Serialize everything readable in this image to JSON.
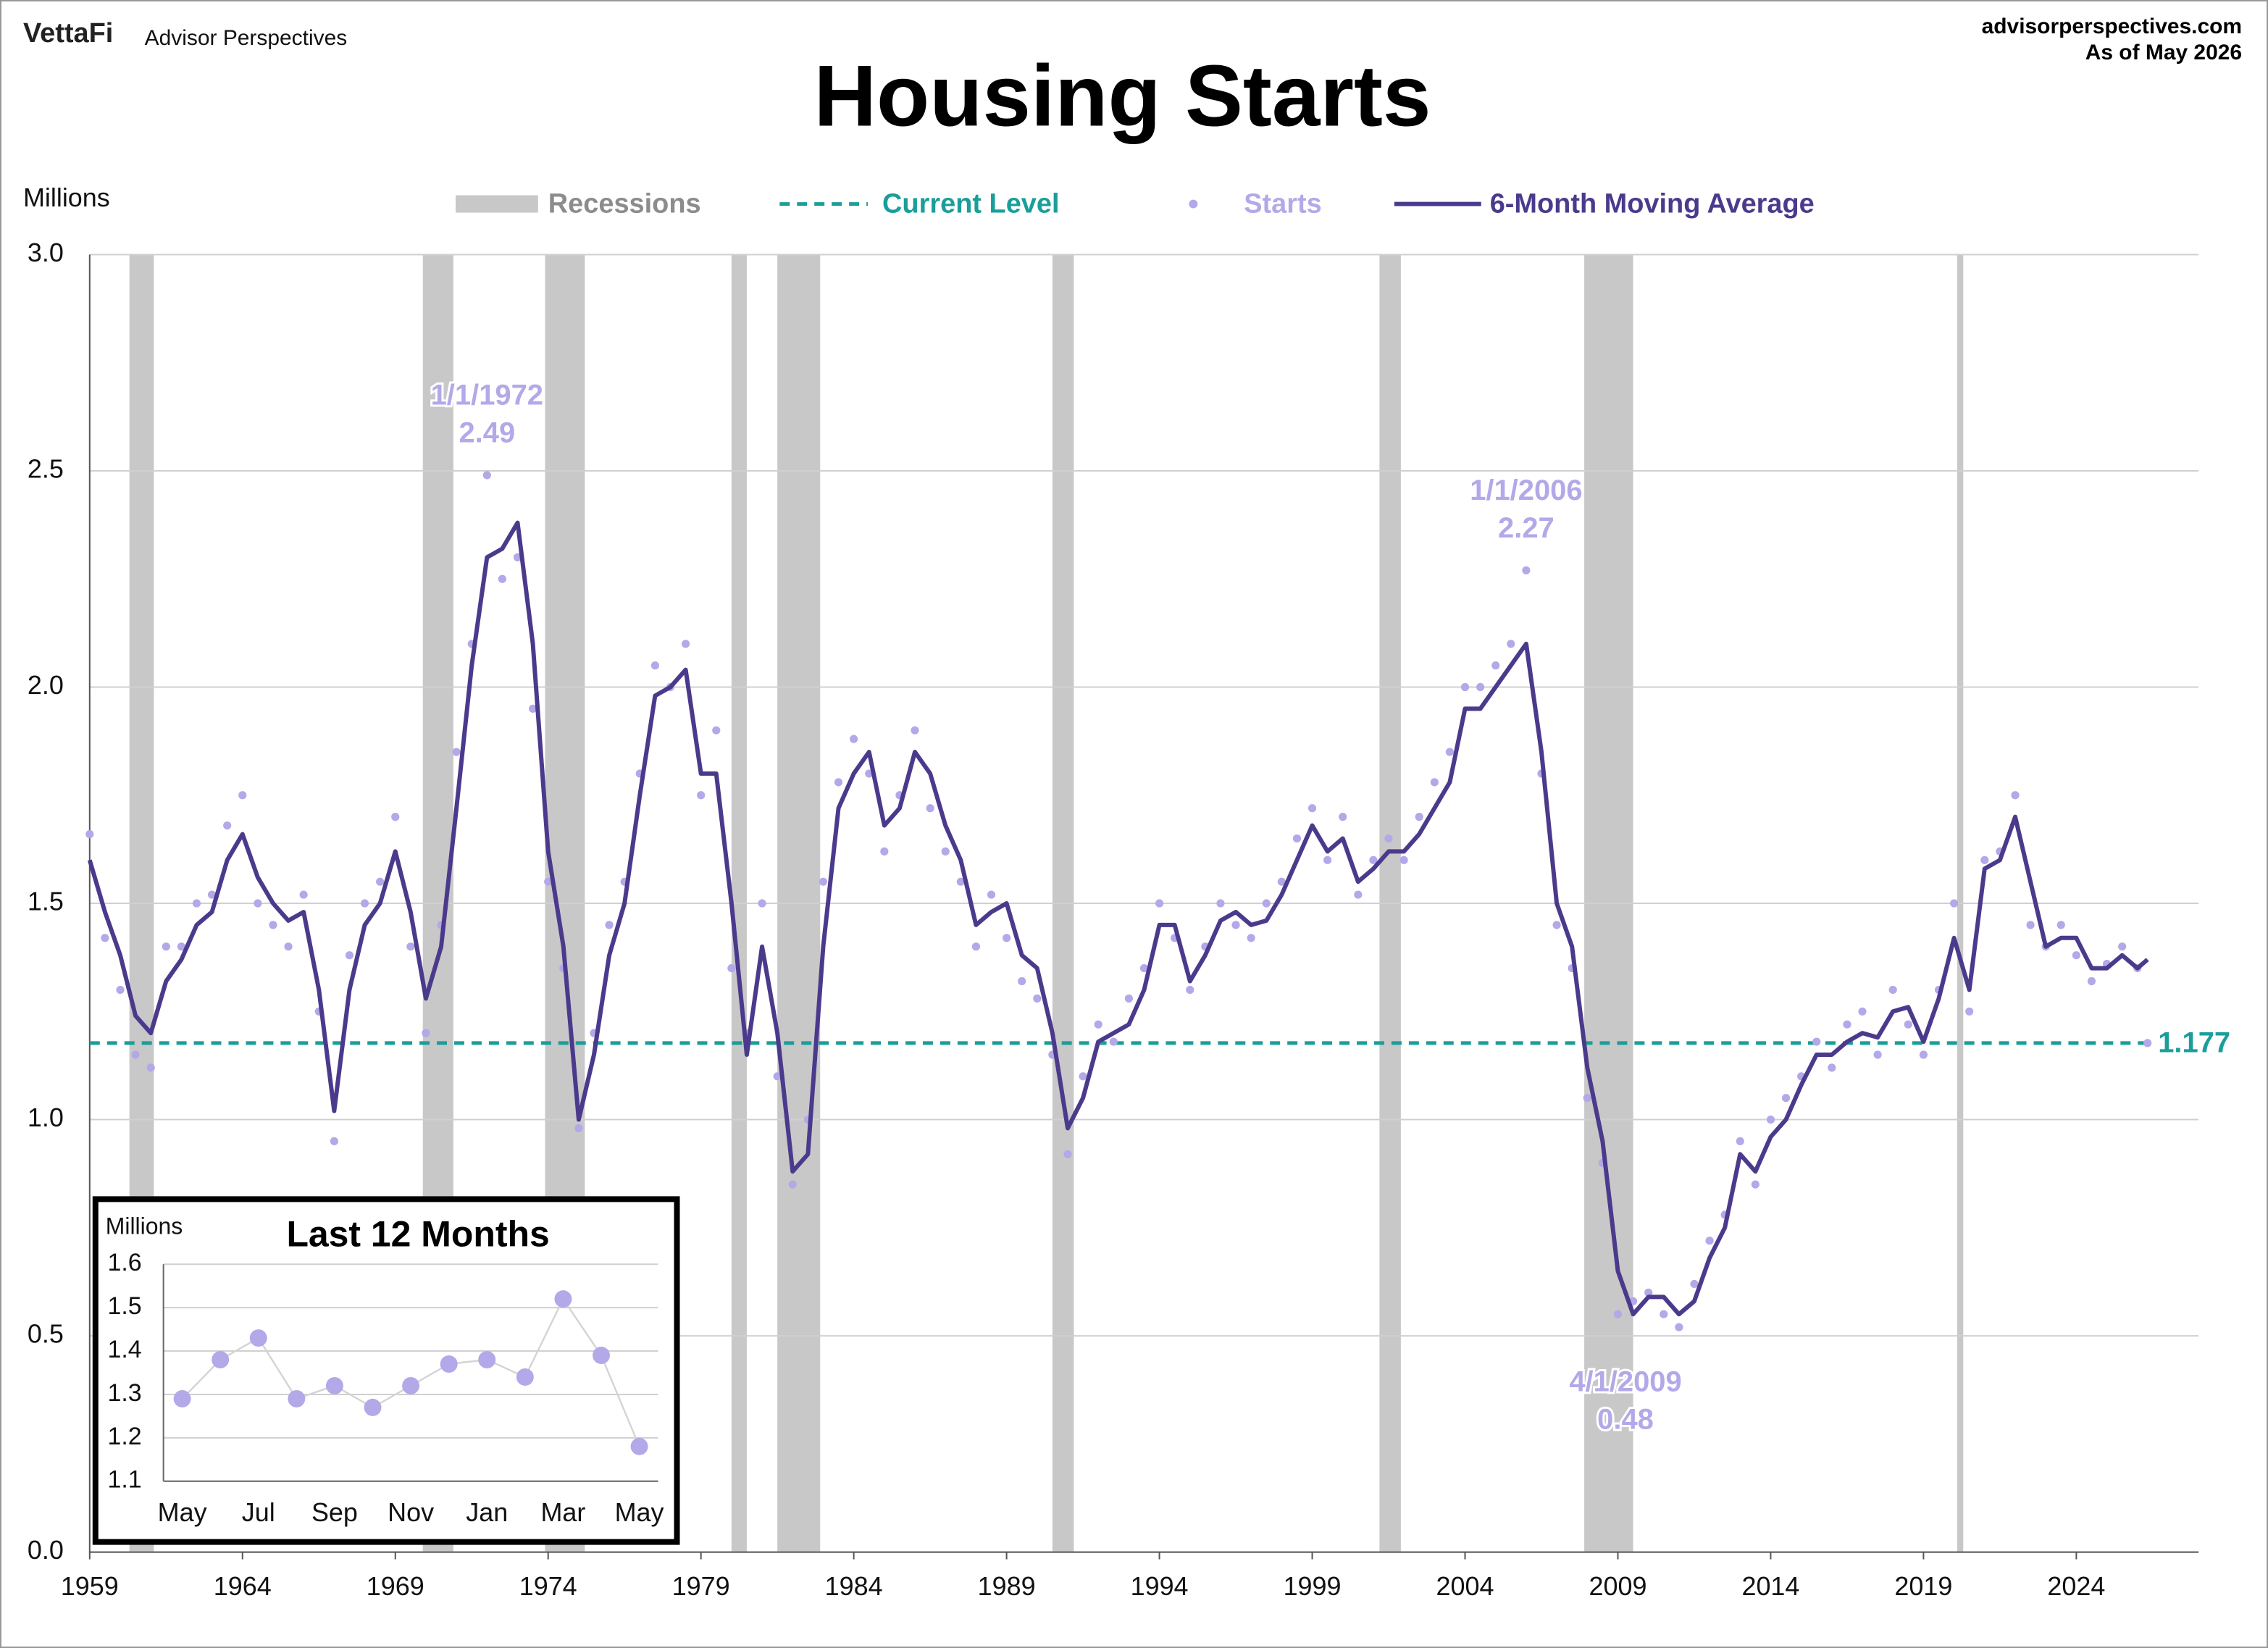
{
  "header": {
    "brand": "VettaFi",
    "publisher": "Advisor Perspectives",
    "site": "advisorperspectives.com",
    "as_of": "As of May 2026"
  },
  "chart_data": [
    {
      "type": "line",
      "title": "Housing Starts",
      "y_label": "Millions",
      "x": [
        1959,
        1959.5,
        1960,
        1960.5,
        1961,
        1961.5,
        1962,
        1962.5,
        1963,
        1963.5,
        1964,
        1964.5,
        1965,
        1965.5,
        1966,
        1966.5,
        1967,
        1967.5,
        1968,
        1968.5,
        1969,
        1969.5,
        1970,
        1970.5,
        1971,
        1971.5,
        1972,
        1972.5,
        1973,
        1973.5,
        1974,
        1974.5,
        1975,
        1975.5,
        1976,
        1976.5,
        1977,
        1977.5,
        1978,
        1978.5,
        1979,
        1979.5,
        1980,
        1980.5,
        1981,
        1981.5,
        1982,
        1982.5,
        1983,
        1983.5,
        1984,
        1984.5,
        1985,
        1985.5,
        1986,
        1986.5,
        1987,
        1987.5,
        1988,
        1988.5,
        1989,
        1989.5,
        1990,
        1990.5,
        1991,
        1991.5,
        1992,
        1992.5,
        1993,
        1993.5,
        1994,
        1994.5,
        1995,
        1995.5,
        1996,
        1996.5,
        1997,
        1997.5,
        1998,
        1998.5,
        1999,
        1999.5,
        2000,
        2000.5,
        2001,
        2001.5,
        2002,
        2002.5,
        2003,
        2003.5,
        2004,
        2004.5,
        2005,
        2005.5,
        2006,
        2006.5,
        2007,
        2007.5,
        2008,
        2008.5,
        2009,
        2009.5,
        2010,
        2010.5,
        2011,
        2011.5,
        2012,
        2012.5,
        2013,
        2013.5,
        2014,
        2014.5,
        2015,
        2015.5,
        2016,
        2016.5,
        2017,
        2017.5,
        2018,
        2018.5,
        2019,
        2019.5,
        2020,
        2020.5,
        2021,
        2021.5,
        2022,
        2022.5,
        2023,
        2023.5,
        2024,
        2024.5,
        2025,
        2025.5,
        2026,
        2026.33
      ],
      "series": [
        {
          "name": "Starts",
          "mark": "dot",
          "color": "#b3a8e8",
          "values": [
            1.66,
            1.42,
            1.3,
            1.15,
            1.12,
            1.4,
            1.4,
            1.5,
            1.52,
            1.68,
            1.75,
            1.5,
            1.45,
            1.4,
            1.52,
            1.25,
            0.95,
            1.38,
            1.5,
            1.55,
            1.7,
            1.4,
            1.2,
            1.45,
            1.85,
            2.1,
            2.49,
            2.25,
            2.3,
            1.95,
            1.55,
            1.35,
            0.98,
            1.2,
            1.45,
            1.55,
            1.8,
            2.05,
            2.0,
            2.1,
            1.75,
            1.9,
            1.35,
            1.2,
            1.5,
            1.1,
            0.85,
            1.0,
            1.55,
            1.78,
            1.88,
            1.8,
            1.62,
            1.75,
            1.9,
            1.72,
            1.62,
            1.55,
            1.4,
            1.52,
            1.42,
            1.32,
            1.28,
            1.15,
            0.92,
            1.1,
            1.22,
            1.18,
            1.28,
            1.35,
            1.5,
            1.42,
            1.3,
            1.4,
            1.5,
            1.45,
            1.42,
            1.5,
            1.55,
            1.65,
            1.72,
            1.6,
            1.7,
            1.52,
            1.6,
            1.65,
            1.6,
            1.7,
            1.78,
            1.85,
            2.0,
            2.0,
            2.05,
            2.1,
            2.27,
            1.8,
            1.45,
            1.35,
            1.05,
            0.9,
            0.55,
            0.58,
            0.6,
            0.55,
            0.52,
            0.62,
            0.72,
            0.78,
            0.95,
            0.85,
            1.0,
            1.05,
            1.1,
            1.18,
            1.12,
            1.22,
            1.25,
            1.15,
            1.3,
            1.22,
            1.15,
            1.3,
            1.5,
            1.25,
            1.6,
            1.62,
            1.75,
            1.45,
            1.4,
            1.45,
            1.38,
            1.32,
            1.36,
            1.4,
            1.35,
            1.177
          ]
        },
        {
          "name": "6-Month Moving Average",
          "mark": "line",
          "color": "#4b3a8c",
          "values": [
            1.6,
            1.48,
            1.38,
            1.24,
            1.2,
            1.32,
            1.37,
            1.45,
            1.48,
            1.6,
            1.66,
            1.56,
            1.5,
            1.46,
            1.48,
            1.3,
            1.02,
            1.3,
            1.45,
            1.5,
            1.62,
            1.48,
            1.28,
            1.4,
            1.72,
            2.05,
            2.3,
            2.32,
            2.38,
            2.1,
            1.62,
            1.4,
            1.0,
            1.15,
            1.38,
            1.5,
            1.75,
            1.98,
            2.0,
            2.04,
            1.8,
            1.8,
            1.5,
            1.15,
            1.4,
            1.2,
            0.88,
            0.92,
            1.4,
            1.72,
            1.8,
            1.85,
            1.68,
            1.72,
            1.85,
            1.8,
            1.68,
            1.6,
            1.45,
            1.48,
            1.5,
            1.38,
            1.35,
            1.2,
            0.98,
            1.05,
            1.18,
            1.2,
            1.22,
            1.3,
            1.45,
            1.45,
            1.32,
            1.38,
            1.46,
            1.48,
            1.45,
            1.46,
            1.52,
            1.6,
            1.68,
            1.62,
            1.65,
            1.55,
            1.58,
            1.62,
            1.62,
            1.66,
            1.72,
            1.78,
            1.95,
            1.95,
            2.0,
            2.05,
            2.1,
            1.85,
            1.5,
            1.4,
            1.12,
            0.95,
            0.65,
            0.55,
            0.59,
            0.59,
            0.55,
            0.58,
            0.68,
            0.75,
            0.92,
            0.88,
            0.96,
            1.0,
            1.08,
            1.15,
            1.15,
            1.18,
            1.2,
            1.19,
            1.25,
            1.26,
            1.18,
            1.28,
            1.42,
            1.3,
            1.58,
            1.6,
            1.7,
            1.55,
            1.4,
            1.42,
            1.42,
            1.35,
            1.35,
            1.38,
            1.35,
            1.37
          ]
        }
      ],
      "recessions": {
        "name": "Recessions",
        "color": "#c8c8c8",
        "periods": [
          [
            1960.3,
            1961.1
          ],
          [
            1969.9,
            1970.9
          ],
          [
            1973.9,
            1975.2
          ],
          [
            1980.0,
            1980.5
          ],
          [
            1981.5,
            1982.9
          ],
          [
            1990.5,
            1991.2
          ],
          [
            2001.2,
            2001.9
          ],
          [
            2007.9,
            2009.5
          ],
          [
            2020.1,
            2020.3
          ]
        ]
      },
      "current_level": {
        "name": "Current Level",
        "value": 1.177,
        "color": "#1a9e9a"
      },
      "annotations": [
        {
          "label": "1/1/1972",
          "value": 2.49,
          "x": 1972,
          "position": "above"
        },
        {
          "label": "1/1/2006",
          "value": 2.27,
          "x": 2006,
          "position": "above"
        },
        {
          "label": "4/1/2009",
          "value": 0.48,
          "x": 2009.25,
          "position": "below"
        }
      ],
      "xlim": [
        1959,
        2028
      ],
      "ylim": [
        0,
        3
      ],
      "xticks": [
        1959,
        1964,
        1969,
        1974,
        1979,
        1984,
        1989,
        1994,
        1999,
        2004,
        2009,
        2014,
        2019,
        2024
      ],
      "yticks": [
        {
          "value": 0,
          "label": "0.0"
        },
        0.5,
        {
          "value": 1,
          "label": "1.0"
        },
        1.5,
        {
          "value": 2,
          "label": "2.0"
        },
        2.5,
        {
          "value": 3,
          "label": "3.0"
        }
      ],
      "grid": true
    },
    {
      "type": "line",
      "title": "Last 12 Months",
      "y_label": "Millions",
      "categories": [
        "May",
        null,
        "Jul",
        null,
        "Sep",
        null,
        "Nov",
        null,
        "Jan",
        null,
        "Mar",
        null,
        "May"
      ],
      "values": [
        1.29,
        1.38,
        1.43,
        1.29,
        1.32,
        1.27,
        1.32,
        1.37,
        1.38,
        1.34,
        1.52,
        1.39,
        1.18
      ],
      "color": "#b3a8e8",
      "line_color": "#d4d4d4",
      "ylim": [
        1.1,
        1.6
      ],
      "yticks": [
        1.1,
        1.2,
        1.3,
        1.4,
        1.5,
        1.6
      ],
      "grid": true
    }
  ]
}
